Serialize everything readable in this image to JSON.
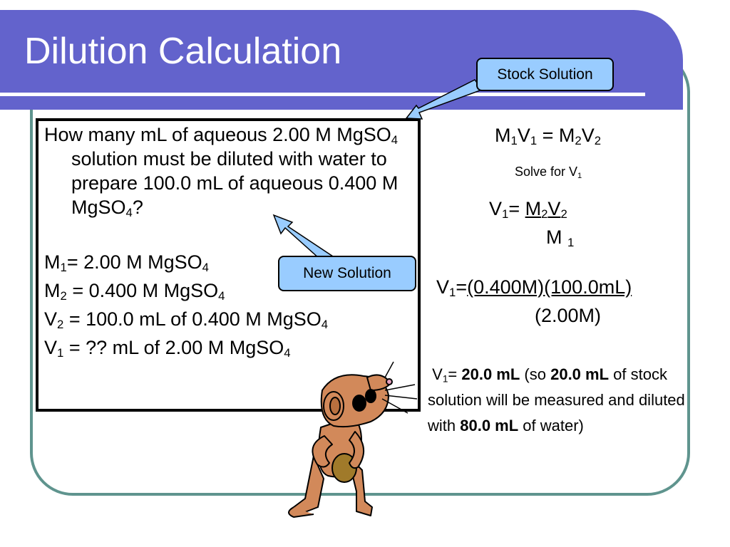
{
  "slide": {
    "title": "Dilution Calculation"
  },
  "question": {
    "text_before_sub1": "How many mL of aqueous 2.00 M MgSO",
    "sub1": "4",
    "text_mid": " solution must be diluted with water to prepare 100.0 mL of aqueous 0.400 M MgSO",
    "sub2": "4",
    "text_end": "?"
  },
  "givens": [
    {
      "var": "M",
      "sub": "1",
      "rest": "= 2.00 M MgSO",
      "tail_sub": "4",
      "tail": ""
    },
    {
      "var": "M",
      "sub": "2",
      "rest": " = 0.400 M MgSO",
      "tail_sub": "4",
      "tail": ""
    },
    {
      "var": "V",
      "sub": "2",
      "rest": " = 100.0 mL of 0.400 M MgSO",
      "tail_sub": "4",
      "tail": ""
    },
    {
      "var": "V",
      "sub": "1",
      "rest": " = ?? mL of 2.00 M MgSO",
      "tail_sub": "4",
      "tail": ""
    }
  ],
  "callouts": {
    "stock": "Stock Solution",
    "new": "New Solution"
  },
  "formula": {
    "m1": "M",
    "m1_sub": "1",
    "v1": "V",
    "v1_sub": "1",
    "eq": " = ",
    "m2": "M",
    "m2_sub": "2",
    "v2": "V",
    "v2_sub": "2",
    "solve_for": "Solve for V",
    "solve_sub": "1"
  },
  "rearranged": {
    "lhs": "V",
    "lhs_sub": "1",
    "eq": "= ",
    "numerator": "M2V2",
    "numerator_m": "M",
    "numerator_m_sub": "2",
    "numerator_v": "V",
    "numerator_v_sub": "2",
    "denominator": "M",
    "denominator_sub": "1"
  },
  "substituted": {
    "lhs": "V",
    "lhs_sub": "1",
    "eq": "=",
    "numerator": "(0.400M)(100.0mL)",
    "denominator": "(2.00M)"
  },
  "answer": {
    "lhs": "V",
    "lhs_sub": "1",
    "eq": "= ",
    "value": "20.0 mL",
    "part1": " (so ",
    "value2": "20.0 mL",
    "part2": " of stock solution will be measured and diluted with ",
    "water": "80.0 mL",
    "part3": " of water)"
  },
  "colors": {
    "banner": "#6363cc",
    "frame": "#5f948e",
    "callout_fill": "#99ccff",
    "mascot_fur": "#d2895a"
  },
  "icons": {
    "mascot": "cartoon-mouse-icon"
  }
}
